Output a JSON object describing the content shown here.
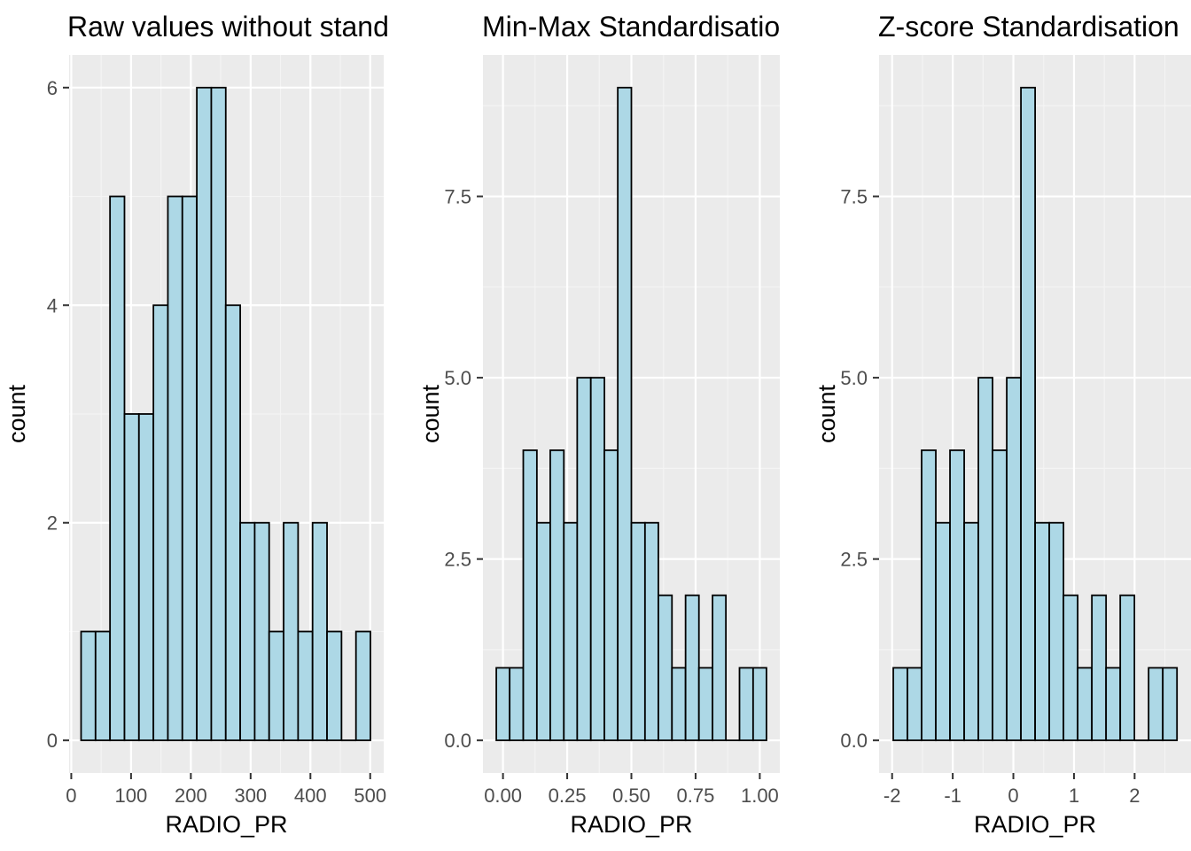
{
  "style": {
    "panel_background": "#EBEBEB",
    "grid_major": "#FFFFFF",
    "grid_minor": "#F4F4F4",
    "bar_fill": "#ADD8E6",
    "bar_stroke": "#000000",
    "tick_text": "#4D4D4D",
    "axis_title_text": "#000000"
  },
  "chart_data": [
    {
      "type": "bar",
      "title": "Raw values without stand",
      "xlabel": "RADIO_PR",
      "ylabel": "count",
      "grid": true,
      "xlim": [
        -3.6,
        522.6
      ],
      "ylim": [
        -0.3,
        6.3
      ],
      "x_ticks": [
        0,
        100,
        200,
        300,
        400,
        500
      ],
      "x_tick_labels": [
        "0",
        "100",
        "200",
        "300",
        "400",
        "500"
      ],
      "y_ticks": [
        0,
        2,
        4,
        6
      ],
      "y_tick_labels": [
        "0",
        "2",
        "4",
        "6"
      ],
      "bins": [
        {
          "x0": 16.4,
          "x1": 40.6,
          "count": 1
        },
        {
          "x0": 40.6,
          "x1": 64.8,
          "count": 1
        },
        {
          "x0": 64.8,
          "x1": 89.0,
          "count": 5
        },
        {
          "x0": 89.0,
          "x1": 113.2,
          "count": 3
        },
        {
          "x0": 113.2,
          "x1": 137.4,
          "count": 3
        },
        {
          "x0": 137.4,
          "x1": 161.6,
          "count": 4
        },
        {
          "x0": 161.6,
          "x1": 185.8,
          "count": 5
        },
        {
          "x0": 185.8,
          "x1": 210.0,
          "count": 5
        },
        {
          "x0": 210.0,
          "x1": 234.2,
          "count": 6
        },
        {
          "x0": 234.2,
          "x1": 258.4,
          "count": 6
        },
        {
          "x0": 258.4,
          "x1": 282.6,
          "count": 4
        },
        {
          "x0": 282.6,
          "x1": 306.8,
          "count": 2
        },
        {
          "x0": 306.8,
          "x1": 331.0,
          "count": 2
        },
        {
          "x0": 331.0,
          "x1": 355.2,
          "count": 1
        },
        {
          "x0": 355.2,
          "x1": 379.4,
          "count": 2
        },
        {
          "x0": 379.4,
          "x1": 403.6,
          "count": 1
        },
        {
          "x0": 403.6,
          "x1": 427.8,
          "count": 2
        },
        {
          "x0": 427.8,
          "x1": 452.0,
          "count": 1
        },
        {
          "x0": 452.0,
          "x1": 476.2,
          "count": 0
        },
        {
          "x0": 476.2,
          "x1": 500.4,
          "count": 1
        }
      ]
    },
    {
      "type": "bar",
      "title": "Min-Max Standardisatio",
      "xlabel": "RADIO_PR",
      "ylabel": "count",
      "grid": true,
      "xlim": [
        -0.078,
        1.078
      ],
      "ylim": [
        -0.45,
        9.45
      ],
      "x_ticks": [
        0,
        0.25,
        0.5,
        0.75,
        1
      ],
      "x_tick_labels": [
        "0.00",
        "0.25",
        "0.50",
        "0.75",
        "1.00"
      ],
      "y_ticks": [
        0,
        2.5,
        5,
        7.5
      ],
      "y_tick_labels": [
        "0.0",
        "2.5",
        "5.0",
        "7.5"
      ],
      "bins": [
        {
          "x0": -0.026,
          "x1": 0.026,
          "count": 1
        },
        {
          "x0": 0.026,
          "x1": 0.079,
          "count": 1
        },
        {
          "x0": 0.079,
          "x1": 0.132,
          "count": 4
        },
        {
          "x0": 0.132,
          "x1": 0.184,
          "count": 3
        },
        {
          "x0": 0.184,
          "x1": 0.237,
          "count": 4
        },
        {
          "x0": 0.237,
          "x1": 0.289,
          "count": 3
        },
        {
          "x0": 0.289,
          "x1": 0.342,
          "count": 5
        },
        {
          "x0": 0.342,
          "x1": 0.395,
          "count": 5
        },
        {
          "x0": 0.395,
          "x1": 0.447,
          "count": 4
        },
        {
          "x0": 0.447,
          "x1": 0.5,
          "count": 9
        },
        {
          "x0": 0.5,
          "x1": 0.553,
          "count": 3
        },
        {
          "x0": 0.553,
          "x1": 0.605,
          "count": 3
        },
        {
          "x0": 0.605,
          "x1": 0.658,
          "count": 2
        },
        {
          "x0": 0.658,
          "x1": 0.711,
          "count": 1
        },
        {
          "x0": 0.711,
          "x1": 0.763,
          "count": 2
        },
        {
          "x0": 0.763,
          "x1": 0.816,
          "count": 1
        },
        {
          "x0": 0.816,
          "x1": 0.868,
          "count": 2
        },
        {
          "x0": 0.868,
          "x1": 0.921,
          "count": 0
        },
        {
          "x0": 0.921,
          "x1": 0.974,
          "count": 1
        },
        {
          "x0": 0.974,
          "x1": 1.026,
          "count": 1
        }
      ]
    },
    {
      "type": "bar",
      "title": "Z-score Standardisation",
      "xlabel": "RADIO_PR",
      "ylabel": "count",
      "grid": true,
      "xlim": [
        -2.215,
        2.93
      ],
      "ylim": [
        -0.45,
        9.45
      ],
      "x_ticks": [
        -2,
        -1,
        0,
        1,
        2
      ],
      "x_tick_labels": [
        "-2",
        "-1",
        "0",
        "1",
        "2"
      ],
      "y_ticks": [
        0,
        2.5,
        5,
        7.5
      ],
      "y_tick_labels": [
        "0.0",
        "2.5",
        "5.0",
        "7.5"
      ],
      "bins": [
        {
          "x0": -1.981,
          "x1": -1.747,
          "count": 1
        },
        {
          "x0": -1.747,
          "x1": -1.513,
          "count": 1
        },
        {
          "x0": -1.513,
          "x1": -1.279,
          "count": 4
        },
        {
          "x0": -1.279,
          "x1": -1.045,
          "count": 3
        },
        {
          "x0": -1.045,
          "x1": -0.811,
          "count": 4
        },
        {
          "x0": -0.811,
          "x1": -0.577,
          "count": 3
        },
        {
          "x0": -0.577,
          "x1": -0.343,
          "count": 5
        },
        {
          "x0": -0.343,
          "x1": -0.109,
          "count": 4
        },
        {
          "x0": -0.109,
          "x1": 0.125,
          "count": 5
        },
        {
          "x0": 0.125,
          "x1": 0.359,
          "count": 9
        },
        {
          "x0": 0.359,
          "x1": 0.593,
          "count": 3
        },
        {
          "x0": 0.593,
          "x1": 0.827,
          "count": 3
        },
        {
          "x0": 0.827,
          "x1": 1.061,
          "count": 2
        },
        {
          "x0": 1.061,
          "x1": 1.295,
          "count": 1
        },
        {
          "x0": 1.295,
          "x1": 1.529,
          "count": 2
        },
        {
          "x0": 1.529,
          "x1": 1.763,
          "count": 1
        },
        {
          "x0": 1.763,
          "x1": 1.997,
          "count": 2
        },
        {
          "x0": 1.997,
          "x1": 2.231,
          "count": 0
        },
        {
          "x0": 2.231,
          "x1": 2.465,
          "count": 1
        },
        {
          "x0": 2.465,
          "x1": 2.699,
          "count": 1
        }
      ]
    }
  ]
}
